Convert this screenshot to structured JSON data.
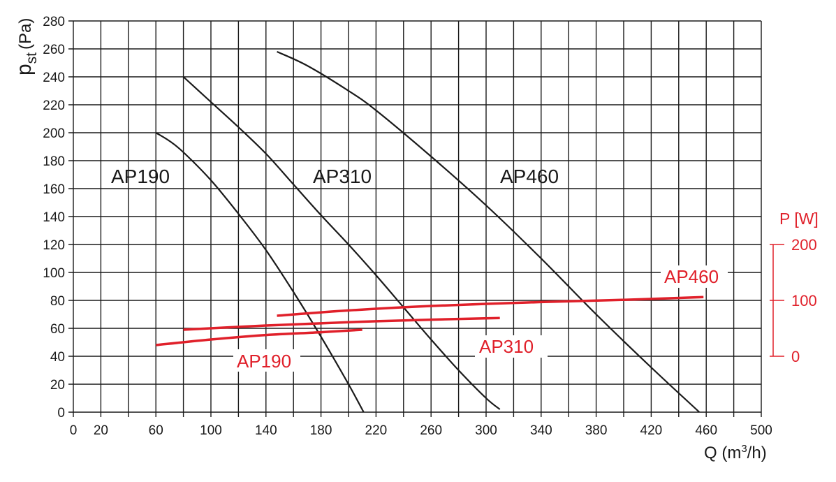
{
  "chart_data": {
    "type": "line",
    "xlabel": "Q (m³/h)",
    "xlabel_main": "Q (m",
    "xlabel_sup": "3",
    "xlabel_tail": "/h)",
    "ylabel_main": "p",
    "ylabel_sub": "st",
    "ylabel_unit": "(Pa)",
    "xlim": [
      0,
      500
    ],
    "ylim": [
      0,
      280
    ],
    "grid": true,
    "x_ticks": [
      "0",
      "20",
      "60",
      "100",
      "140",
      "180",
      "220",
      "260",
      "300",
      "340",
      "380",
      "420",
      "460",
      "500"
    ],
    "y_ticks": [
      "0",
      "20",
      "40",
      "60",
      "80",
      "100",
      "120",
      "140",
      "160",
      "180",
      "200",
      "220",
      "240",
      "260",
      "280"
    ],
    "y2_label": "P [W]",
    "y2_ticks": [
      "0",
      "100",
      "200"
    ],
    "y2lim": [
      0,
      200
    ],
    "colors": {
      "pressure": "#1a1a1a",
      "power": "#e0202a"
    },
    "pressure_series": [
      {
        "name": "AP190",
        "x": [
          60,
          70,
          80,
          100,
          120,
          140,
          160,
          180,
          200,
          211
        ],
        "y": [
          200,
          194,
          186,
          166,
          142,
          116,
          86,
          54,
          20,
          0
        ]
      },
      {
        "name": "AP310",
        "x": [
          80,
          100,
          120,
          140,
          160,
          180,
          200,
          220,
          240,
          260,
          280,
          300,
          310
        ],
        "y": [
          240,
          222,
          204,
          185,
          163,
          141,
          120,
          98,
          75,
          52,
          30,
          10,
          2
        ]
      },
      {
        "name": "AP460",
        "x": [
          148,
          170,
          200,
          220,
          260,
          300,
          340,
          380,
          420,
          455
        ],
        "y": [
          258,
          248,
          230,
          216,
          183,
          148,
          110,
          70,
          32,
          0
        ]
      }
    ],
    "power_series": [
      {
        "name": "AP190",
        "x": [
          60,
          100,
          140,
          180,
          210
        ],
        "y": [
          20,
          30,
          38,
          43,
          47.5
        ]
      },
      {
        "name": "AP310",
        "x": [
          80,
          140,
          200,
          260,
          310
        ],
        "y": [
          47.5,
          55,
          61,
          65.5,
          68.5
        ]
      },
      {
        "name": "AP460",
        "x": [
          148,
          200,
          260,
          340,
          400,
          458
        ],
        "y": [
          72.5,
          82,
          90,
          97,
          101,
          106
        ]
      }
    ]
  }
}
